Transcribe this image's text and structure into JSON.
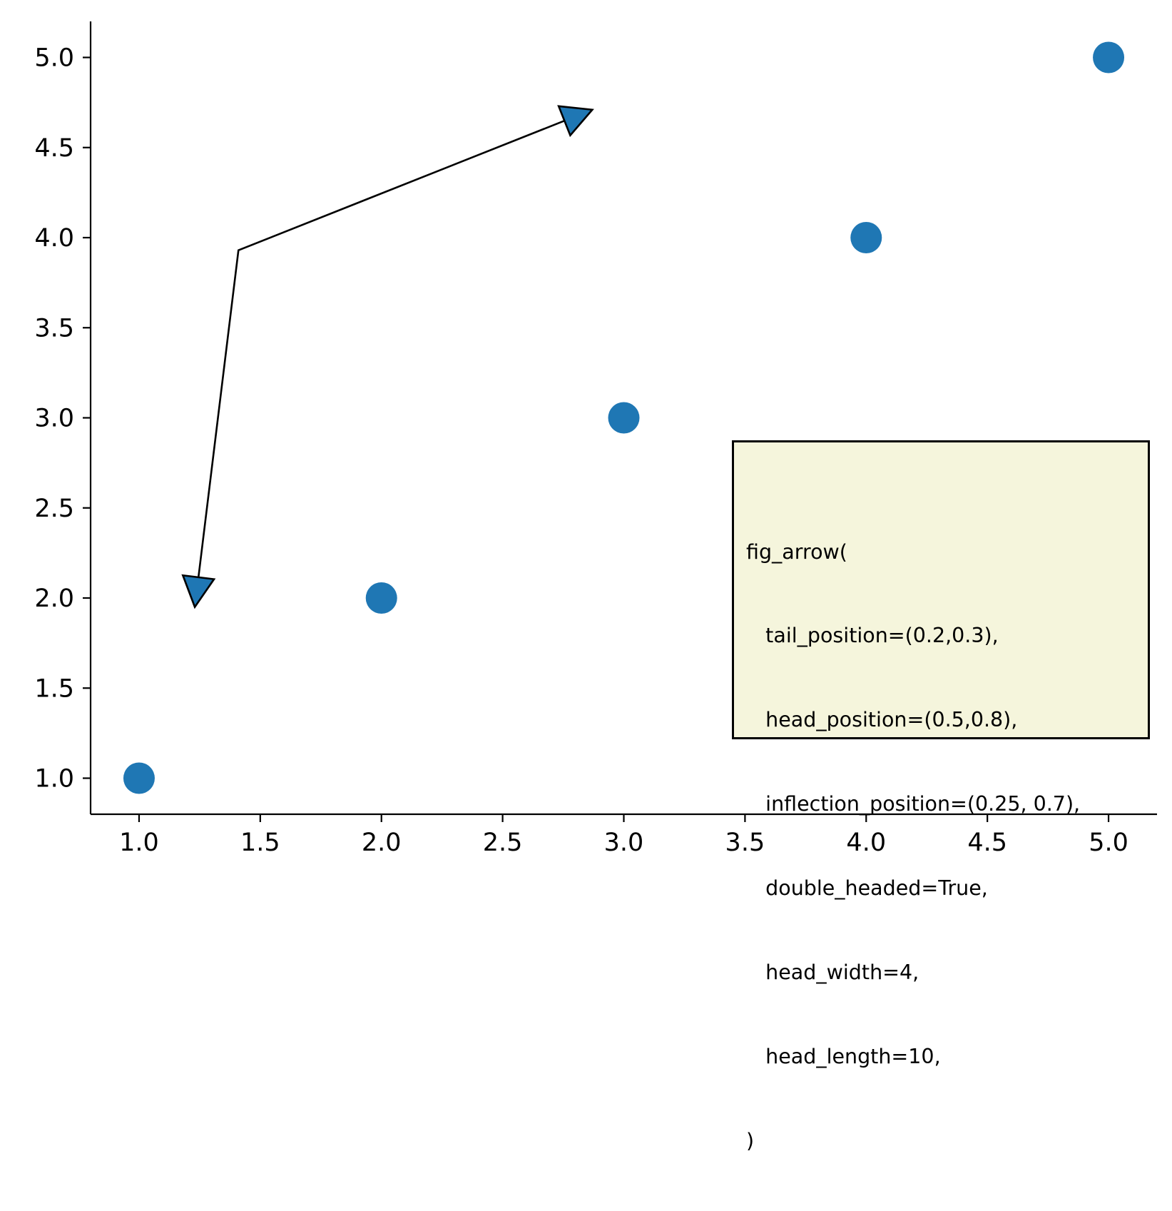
{
  "chart_data": {
    "type": "scatter",
    "x": [
      1.0,
      2.0,
      3.0,
      4.0,
      5.0
    ],
    "y": [
      1.0,
      2.0,
      3.0,
      4.0,
      5.0
    ],
    "xlim": [
      0.8,
      5.2
    ],
    "ylim": [
      0.8,
      5.2
    ],
    "xticks": [
      "1.0",
      "1.5",
      "2.0",
      "2.5",
      "3.0",
      "3.5",
      "4.0",
      "4.5",
      "5.0"
    ],
    "yticks": [
      "1.0",
      "1.5",
      "2.0",
      "2.5",
      "3.0",
      "3.5",
      "4.0",
      "4.5",
      "5.0"
    ],
    "title": "",
    "xlabel": "",
    "ylabel": "",
    "grid": false,
    "marker_color": "#1f77b4",
    "arrow": {
      "double_headed": true,
      "tail": [
        1.23,
        1.95
      ],
      "inflection": [
        1.41,
        3.93
      ],
      "head": [
        2.87,
        4.71
      ],
      "head_color": "#1f77b4"
    },
    "annotation": {
      "lines": [
        "fig_arrow(",
        "   tail_position=(0.2,0.3),",
        "   head_position=(0.5,0.8),",
        "   inflection_position=(0.25, 0.7),",
        "   double_headed=True,",
        "   head_width=4,",
        "   head_length=10,",
        ")"
      ],
      "background": "#f5f5dc"
    }
  }
}
